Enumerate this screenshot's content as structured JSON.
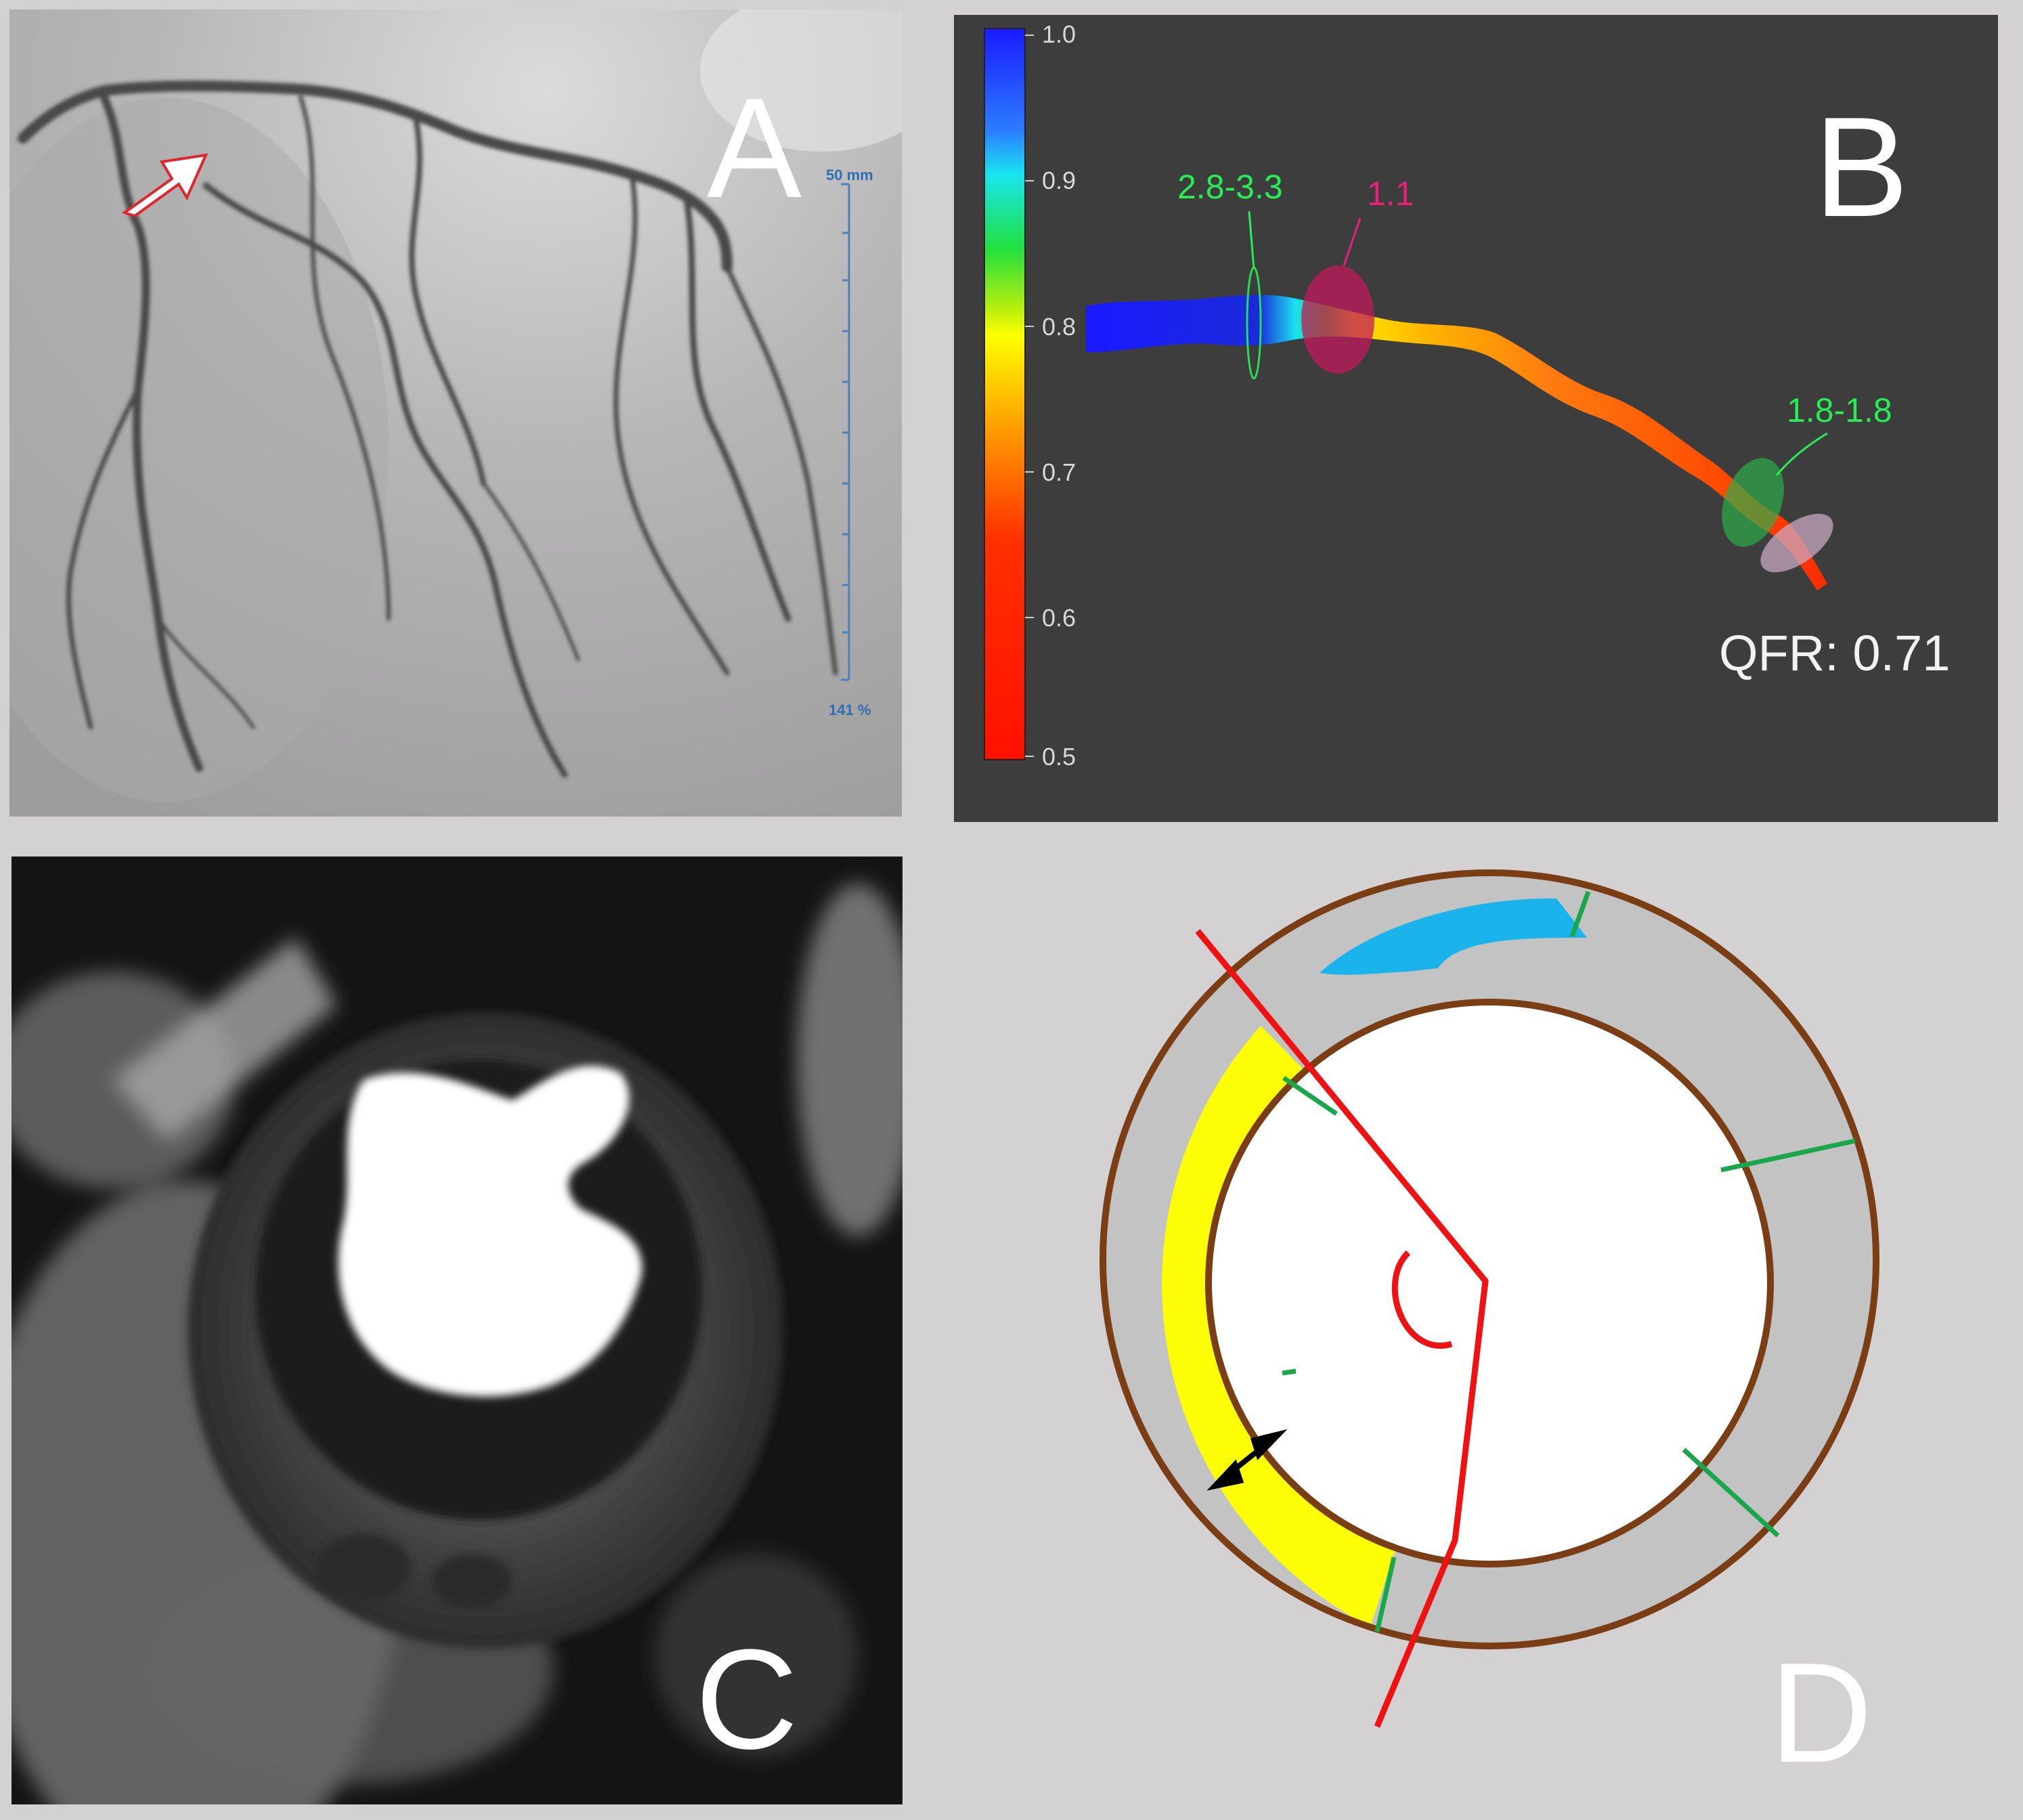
{
  "panels": {
    "a": {
      "label": "A",
      "scale_top": "50 mm",
      "scale_bottom": "141 %"
    },
    "b": {
      "label": "B",
      "colorbar_ticks": [
        "1.0",
        "0.9",
        "0.8",
        "0.7",
        "0.6",
        "0.5"
      ],
      "annotations": {
        "proximal": "2.8-3.3",
        "lesion": "1.1",
        "distal": "1.8-1.8"
      },
      "qfr_text": "QFR: 0.71"
    },
    "c": {
      "label": "C"
    },
    "d": {
      "label": "D"
    }
  },
  "colors": {
    "arrow_outline": "#e0262e",
    "qfr_green": "#27ee55",
    "qfr_pink": "#e8207a",
    "ring_brown": "#7a3d14",
    "segment_yellow": "#fdfd06",
    "edema_orange": "#ea8332",
    "segment_blue": "#1ab3ec",
    "axis_red": "#ef1212",
    "segment_line_green": "#1aa64a",
    "segment_gray": "#c3c3c3"
  }
}
